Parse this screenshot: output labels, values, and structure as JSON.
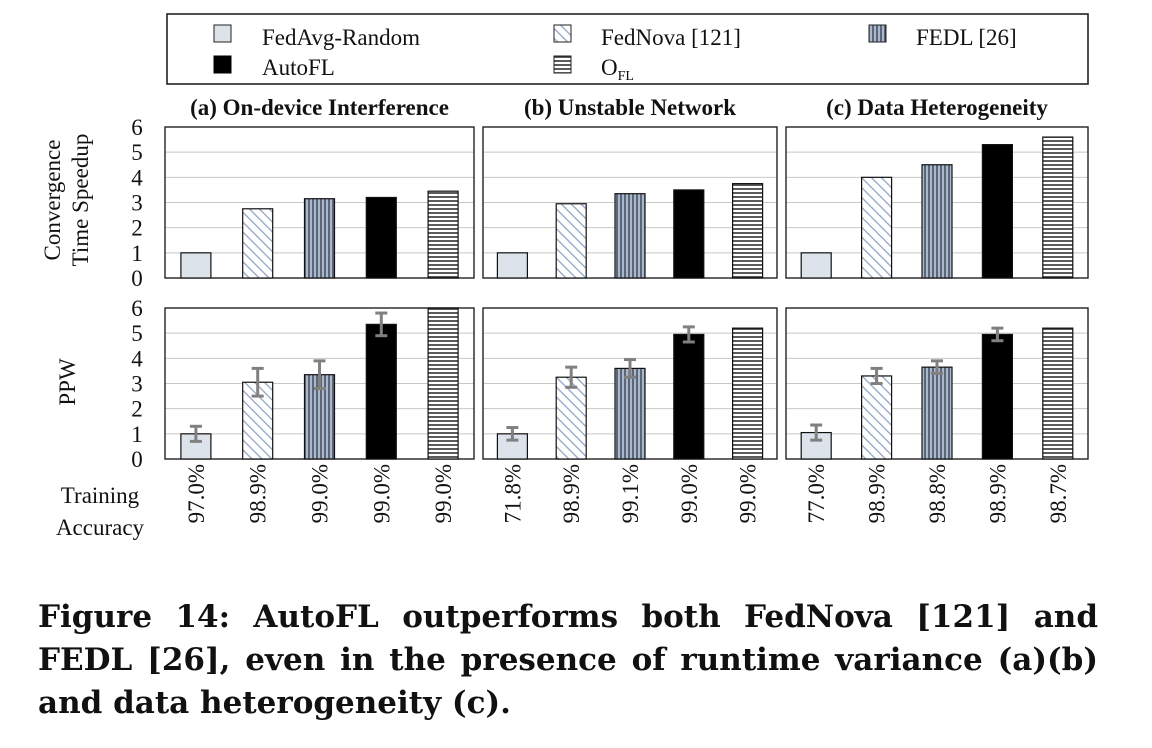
{
  "legend": [
    {
      "label": "FedAvg-Random",
      "style": "light"
    },
    {
      "label": "FedNova [121]",
      "style": "diag"
    },
    {
      "label": "FEDL [26]",
      "style": "vert"
    },
    {
      "label": "AutoFL",
      "style": "black"
    },
    {
      "label": "O",
      "sub": "FL",
      "style": "horiz"
    }
  ],
  "colors": {
    "light": "#dde3ea",
    "diag_stroke": "#8fa6c4",
    "vert_stroke": "#3a4250",
    "vert_fill": "#a9b8cc",
    "black": "#000000",
    "horiz_stroke": "#333333"
  },
  "row_labels": {
    "top": [
      "Convergence",
      "Time Speedup"
    ],
    "bottom": "PPW",
    "accuracy": [
      "Training",
      "Accuracy"
    ]
  },
  "caption": "Figure 14: AutoFL outperforms both FedNova [121] and FEDL [26], even in the presence of runtime variance (a)(b) and data heterogeneity (c).",
  "chart_data": [
    {
      "type": "bar",
      "title": "(a) On-device Interference",
      "ylabel": "Convergence Time Speedup",
      "ylim": [
        0,
        6
      ],
      "yticks": [
        "0",
        "1",
        "2",
        "3",
        "4",
        "5",
        "6"
      ],
      "categories": [
        "FedAvg-Random",
        "FedNova [121]",
        "FEDL [26]",
        "AutoFL",
        "OFL"
      ],
      "values": [
        1.0,
        2.75,
        3.15,
        3.2,
        3.45
      ]
    },
    {
      "type": "bar",
      "title": "(b) Unstable Network",
      "ylabel": "Convergence Time Speedup",
      "ylim": [
        0,
        6
      ],
      "categories": [
        "FedAvg-Random",
        "FedNova [121]",
        "FEDL [26]",
        "AutoFL",
        "OFL"
      ],
      "values": [
        1.0,
        2.95,
        3.35,
        3.5,
        3.75
      ]
    },
    {
      "type": "bar",
      "title": "(c) Data Heterogeneity",
      "ylabel": "Convergence Time Speedup",
      "ylim": [
        0,
        6
      ],
      "categories": [
        "FedAvg-Random",
        "FedNova [121]",
        "FEDL [26]",
        "AutoFL",
        "OFL"
      ],
      "values": [
        1.0,
        4.0,
        4.5,
        5.3,
        5.6
      ]
    },
    {
      "type": "bar",
      "ylabel": "PPW",
      "ylim": [
        0,
        6
      ],
      "yticks": [
        "0",
        "1",
        "2",
        "3",
        "4",
        "5",
        "6"
      ],
      "categories": [
        "FedAvg-Random",
        "FedNova [121]",
        "FEDL [26]",
        "AutoFL",
        "OFL"
      ],
      "values": [
        1.0,
        3.05,
        3.35,
        5.35,
        6.0
      ],
      "errors": [
        0.3,
        0.55,
        0.55,
        0.45,
        0
      ],
      "accuracy": [
        "97.0%",
        "98.9%",
        "99.0%",
        "99.0%",
        "99.0%"
      ]
    },
    {
      "type": "bar",
      "ylabel": "PPW",
      "ylim": [
        0,
        6
      ],
      "categories": [
        "FedAvg-Random",
        "FedNova [121]",
        "FEDL [26]",
        "AutoFL",
        "OFL"
      ],
      "values": [
        1.0,
        3.25,
        3.6,
        4.95,
        5.2
      ],
      "errors": [
        0.25,
        0.4,
        0.35,
        0.3,
        0
      ],
      "accuracy": [
        "71.8%",
        "98.9%",
        "99.1%",
        "99.0%",
        "99.0%"
      ]
    },
    {
      "type": "bar",
      "ylabel": "PPW",
      "ylim": [
        0,
        6
      ],
      "categories": [
        "FedAvg-Random",
        "FedNova [121]",
        "FEDL [26]",
        "AutoFL",
        "OFL"
      ],
      "values": [
        1.05,
        3.3,
        3.65,
        4.95,
        5.2
      ],
      "errors": [
        0.3,
        0.3,
        0.25,
        0.25,
        0
      ],
      "accuracy": [
        "77.0%",
        "98.9%",
        "98.8%",
        "98.9%",
        "98.7%"
      ]
    }
  ]
}
